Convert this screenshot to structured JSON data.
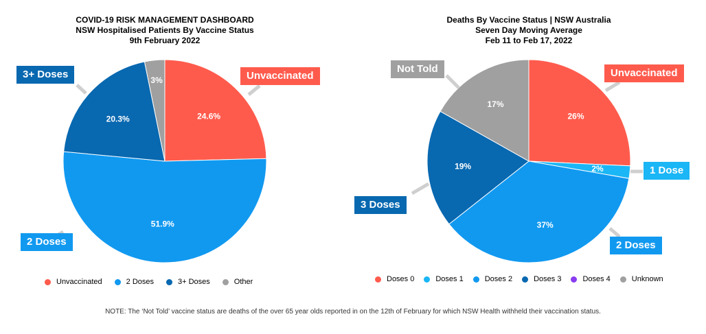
{
  "chart_data": [
    {
      "type": "pie",
      "title_lines": [
        "COVID-19 RISK MANAGEMENT DASHBOARD",
        "NSW Hospitalised Patients By Vaccine Status",
        "9th February 2022"
      ],
      "slices": [
        {
          "name": "Unvaccinated",
          "value": 24.6,
          "label": "24.6%",
          "color": "#ff5b4d",
          "callout": "Unvaccinated"
        },
        {
          "name": "2 Doses",
          "value": 51.9,
          "label": "51.9%",
          "color": "#1199f0",
          "callout": "2 Doses"
        },
        {
          "name": "3+ Doses",
          "value": 20.3,
          "label": "20.3%",
          "color": "#0868b0",
          "callout": "3+ Doses"
        },
        {
          "name": "Other",
          "value": 3.2,
          "label": "3%",
          "color": "#a0a0a0",
          "callout": ""
        }
      ],
      "legend": [
        "Unvaccinated",
        "2 Doses",
        "3+ Doses",
        "Other"
      ],
      "legend_colors": [
        "#ff5b4d",
        "#1199f0",
        "#0868b0",
        "#a0a0a0"
      ],
      "legend_position": "bottom"
    },
    {
      "type": "pie",
      "title_lines": [
        "Deaths By Vaccine Status | NSW Australia",
        "Seven Day Moving Average",
        "Feb 11 to Feb 17, 2022"
      ],
      "slices": [
        {
          "name": "Doses 0",
          "value": 26,
          "label": "26%",
          "color": "#ff5b4d",
          "callout": "Unvaccinated"
        },
        {
          "name": "Doses 1",
          "value": 2,
          "label": "2%",
          "color": "#1ab6f5",
          "callout": "1 Dose"
        },
        {
          "name": "Doses 2",
          "value": 37,
          "label": "37%",
          "color": "#1199f0",
          "callout": "2 Doses"
        },
        {
          "name": "Doses 3",
          "value": 19,
          "label": "19%",
          "color": "#0868b0",
          "callout": "3 Doses"
        },
        {
          "name": "Unknown",
          "value": 17,
          "label": "17%",
          "color": "#a0a0a0",
          "callout": "Not Told"
        }
      ],
      "legend": [
        "Doses 0",
        "Doses 1",
        "Doses 2",
        "Doses 3",
        "Doses 4",
        "Unknown"
      ],
      "legend_colors": [
        "#ff5b4d",
        "#1ab6f5",
        "#1199f0",
        "#0868b0",
        "#8a3cf0",
        "#a0a0a0"
      ],
      "legend_position": "bottom"
    }
  ],
  "footnote": "NOTE: The ‘Not Told’ vaccine status are deaths of the over 65 year olds reported in on the 12th of February for which NSW Health withheld their vaccination status."
}
